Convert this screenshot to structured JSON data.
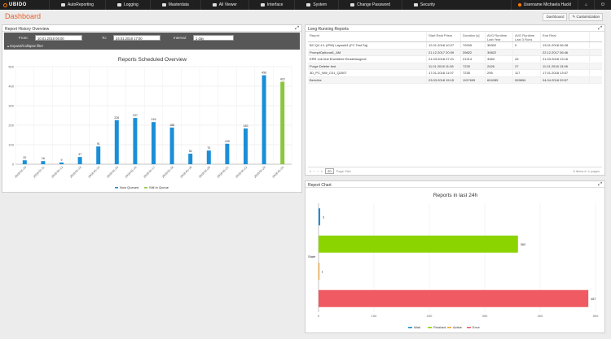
{
  "app": {
    "logo": "UBIDO"
  },
  "nav": [
    {
      "label": "AutoReporting"
    },
    {
      "label": "Logging"
    },
    {
      "label": "Masterdata"
    },
    {
      "label": "All Viewer"
    },
    {
      "label": "Interface"
    },
    {
      "label": "System"
    },
    {
      "label": "Change Password"
    },
    {
      "label": "Security"
    }
  ],
  "user": {
    "name": "Username Michaela Hackl"
  },
  "page": {
    "title": "Dashboard",
    "tab_dashboard": "Dashboard",
    "tab_customization": "Customization"
  },
  "history": {
    "title": "Report History Overview",
    "from_label": "From:",
    "from_value": "10.01.2018 06:00",
    "to_label": "To:",
    "to_value": "24.01.2018 17:00",
    "interval_label": "Interval:",
    "interval_value": "1 day",
    "expand_label": "Expand/Collapse filter",
    "chart_title": "Reports Scheduled Overview"
  },
  "long_running": {
    "title": "Long Running Reports",
    "columns": [
      "Report",
      "Start Real Prism",
      "Duration [s]",
      "AVG Runtime Last Year",
      "AVG Runtime Last 3 Runs",
      "End Real"
    ],
    "rows": [
      [
        "BO Q4 4.1 (IPW) Layout#1 (FC Test Sq)",
        "12.01.2018 10:27",
        "72005",
        "36302",
        "0",
        "13.01.2018 06:28"
      ],
      [
        "PromptOptional1_AM",
        "21.12.2017 20:09",
        "39822",
        "39822",
        "",
        "22.12.2017 06:46"
      ],
      [
        "ERR Job test Erweiterte Einstellungen1",
        "21.03.2018 07:21",
        "21214",
        "3383",
        "43",
        "21.03.2018 13:16"
      ],
      [
        "Purge Deleter test",
        "11.01.2018 11:08",
        "7225",
        "2426",
        "27",
        "11.01.2018 13:08"
      ],
      [
        "3D_PC_NW_C01_Q2007",
        "17.01.2018 11:07",
        "7235",
        "295",
        "117",
        "17.01.2018 13:07"
      ],
      [
        "Berichte",
        "23.03.2018 15:15",
        "1197699",
        "604285",
        "599854",
        "04.04.2018 09:57"
      ]
    ],
    "page_size": "20",
    "page_size_label": "Page Size",
    "items_info": "6 items in 1 pages"
  },
  "report_chart": {
    "title": "Report Chart"
  },
  "chart_data": [
    {
      "type": "bar",
      "title": "Reports Scheduled Overview",
      "categories": [
        "2018-01-10",
        "2018-01-11",
        "2018-01-12",
        "2018-01-13",
        "2018-01-14",
        "2018-01-15",
        "2018-01-16",
        "2018-01-17",
        "2018-01-18",
        "2018-01-19",
        "2018-01-20",
        "2018-01-21",
        "2018-01-22",
        "2018-01-23",
        "2018-01-24"
      ],
      "series": [
        {
          "name": "Now Queued",
          "color": "#1a8fd8",
          "values": [
            20,
            16,
            9,
            37,
            91,
            226,
            237,
            216,
            188,
            54,
            70,
            105,
            183,
            456,
            null
          ]
        },
        {
          "name": "Still In Queue",
          "color": "#8cc63f",
          "values": [
            null,
            null,
            null,
            null,
            null,
            null,
            null,
            null,
            null,
            null,
            null,
            null,
            null,
            null,
            423
          ]
        }
      ],
      "ylim": [
        0,
        500
      ],
      "yticks": [
        0,
        100,
        200,
        300,
        400,
        500
      ],
      "legend": "bottom"
    },
    {
      "type": "bar",
      "orientation": "horizontal",
      "title": "Reports in last 24h",
      "ylabel": "State",
      "categories": [
        "Wait",
        "Finished",
        "Active",
        "Error"
      ],
      "values": [
        3,
        360,
        1,
        487
      ],
      "colors": [
        "#1a8fd8",
        "#8cd400",
        "#f5a623",
        "#ef5a63"
      ],
      "xlim": [
        0,
        500
      ],
      "xticks": [
        0,
        100,
        200,
        300,
        400,
        500
      ],
      "legend": "bottom"
    }
  ]
}
